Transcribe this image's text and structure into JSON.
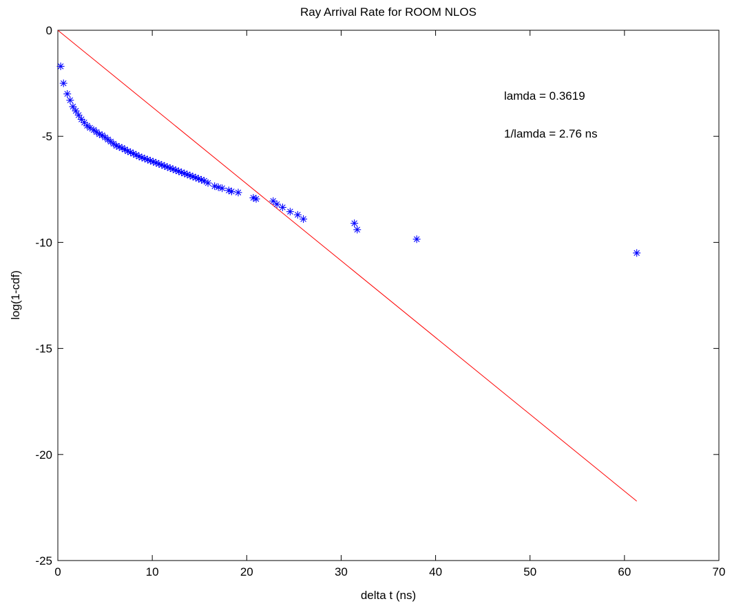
{
  "chart_data": {
    "type": "scatter",
    "title": "Ray Arrival Rate for ROOM NLOS",
    "xlabel": "delta t (ns)",
    "ylabel": "log(1-cdf)",
    "xlim": [
      0,
      70
    ],
    "ylim": [
      -25,
      0
    ],
    "xticks": [
      "0",
      "10",
      "20",
      "30",
      "40",
      "50",
      "60",
      "70"
    ],
    "yticks": [
      "0",
      "-5",
      "-10",
      "-15",
      "-20",
      "-25"
    ],
    "grid": false,
    "annotations": [
      "lamda = 0.3619",
      "1/lamda = 2.76 ns"
    ],
    "series": [
      {
        "marker": "asterisk",
        "color": "#0000ff",
        "x": [
          0.3,
          0.6,
          1.0,
          1.3,
          1.6,
          1.9,
          2.2,
          2.5,
          2.8,
          3.1,
          3.4,
          3.8,
          4.1,
          4.4,
          4.7,
          5.0,
          5.3,
          5.6,
          5.9,
          6.2,
          6.5,
          6.8,
          7.1,
          7.4,
          7.7,
          8.0,
          8.3,
          8.6,
          8.9,
          9.2,
          9.5,
          9.8,
          10.1,
          10.4,
          10.7,
          11.0,
          11.3,
          11.6,
          11.9,
          12.2,
          12.5,
          12.8,
          13.1,
          13.4,
          13.7,
          14.0,
          14.3,
          14.6,
          14.9,
          15.2,
          15.5,
          15.9,
          16.6,
          17.0,
          17.4,
          18.1,
          18.4,
          19.1,
          20.7,
          21.0,
          22.8,
          23.2,
          23.8,
          24.6,
          25.4,
          26.0,
          31.4,
          31.7,
          38.0,
          61.3
        ],
        "y": [
          -1.7,
          -2.5,
          -3.0,
          -3.3,
          -3.6,
          -3.8,
          -4.0,
          -4.2,
          -4.35,
          -4.5,
          -4.6,
          -4.7,
          -4.8,
          -4.9,
          -4.95,
          -5.05,
          -5.15,
          -5.25,
          -5.35,
          -5.45,
          -5.5,
          -5.55,
          -5.62,
          -5.7,
          -5.75,
          -5.82,
          -5.88,
          -5.95,
          -6.0,
          -6.05,
          -6.1,
          -6.15,
          -6.2,
          -6.25,
          -6.3,
          -6.35,
          -6.4,
          -6.45,
          -6.5,
          -6.55,
          -6.6,
          -6.65,
          -6.7,
          -6.75,
          -6.8,
          -6.85,
          -6.9,
          -6.95,
          -7.0,
          -7.05,
          -7.1,
          -7.2,
          -7.35,
          -7.4,
          -7.45,
          -7.55,
          -7.6,
          -7.65,
          -7.9,
          -7.95,
          -8.05,
          -8.2,
          -8.35,
          -8.55,
          -8.7,
          -8.9,
          -9.1,
          -9.4,
          -9.85,
          -10.5
        ]
      },
      {
        "marker": "line",
        "color": "#ff0000",
        "x": [
          0,
          61.3
        ],
        "y": [
          0,
          -22.2
        ]
      }
    ]
  }
}
